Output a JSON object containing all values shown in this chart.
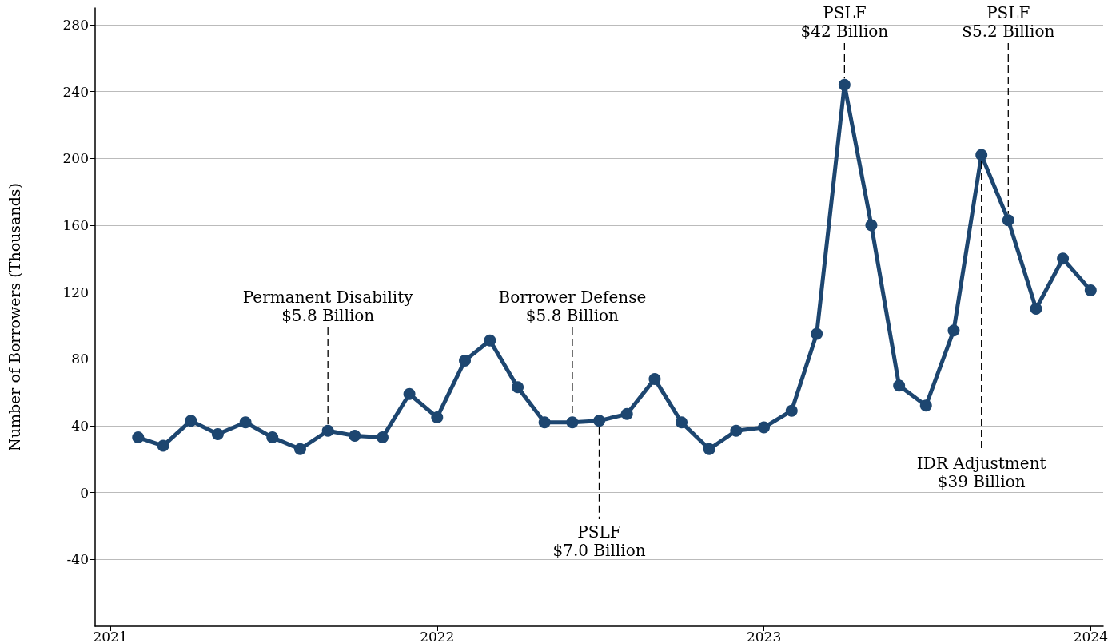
{
  "chart_data": {
    "type": "line",
    "ylabel": "Number of Borrowers (Thousands)",
    "x": [
      "2021-02",
      "2021-03",
      "2021-04",
      "2021-05",
      "2021-06",
      "2021-07",
      "2021-08",
      "2021-09",
      "2021-10",
      "2021-11",
      "2021-12",
      "2022-01",
      "2022-02",
      "2022-03",
      "2022-04",
      "2022-05",
      "2022-06",
      "2022-07",
      "2022-08",
      "2022-09",
      "2022-10",
      "2022-11",
      "2022-12",
      "2023-01",
      "2023-02",
      "2023-03",
      "2023-04",
      "2023-05",
      "2023-06",
      "2023-07",
      "2023-08",
      "2023-09",
      "2023-10",
      "2023-11",
      "2023-12",
      "2024-01"
    ],
    "series": [
      {
        "color": "#1d4670",
        "values": [
          33,
          28,
          43,
          35,
          42,
          33,
          26,
          37,
          34,
          33,
          59,
          45,
          79,
          91,
          63,
          42,
          42,
          43,
          47,
          68,
          42,
          26,
          37,
          39,
          49,
          95,
          244,
          160,
          64,
          52,
          97,
          202,
          163,
          110,
          140,
          121
        ]
      }
    ],
    "xlim": [
      "2020-12-15",
      "2024-01-15"
    ],
    "xticks": [
      {
        "value": "2021-01",
        "label": "2021"
      },
      {
        "value": "2022-01",
        "label": "2022"
      },
      {
        "value": "2023-01",
        "label": "2023"
      },
      {
        "value": "2024-01",
        "label": "2024"
      }
    ],
    "ylim": [
      -80,
      290
    ],
    "yticks": [
      -40,
      0,
      40,
      80,
      120,
      160,
      200,
      240,
      280
    ],
    "grid": "y",
    "marker": "circle",
    "line_style": "solid",
    "annotations": [
      {
        "text": "Permanent Disability\n$5.8 Billion",
        "x": "2021-09",
        "y": 37
      },
      {
        "text": "Borrower Defense\n$5.8 Billion",
        "x": "2022-06",
        "y": 42
      },
      {
        "text": "PSLF\n$7.0 Billion",
        "x": "2022-07",
        "y": 43
      },
      {
        "text": "PSLF\n$42 Billion",
        "x": "2023-04",
        "y": 244
      },
      {
        "text": "IDR Adjustment\n$39 Billion",
        "x": "2023-09",
        "y": 202
      },
      {
        "text": "PSLF\n$5.2 Billion",
        "x": "2023-10",
        "y": 163
      }
    ]
  }
}
